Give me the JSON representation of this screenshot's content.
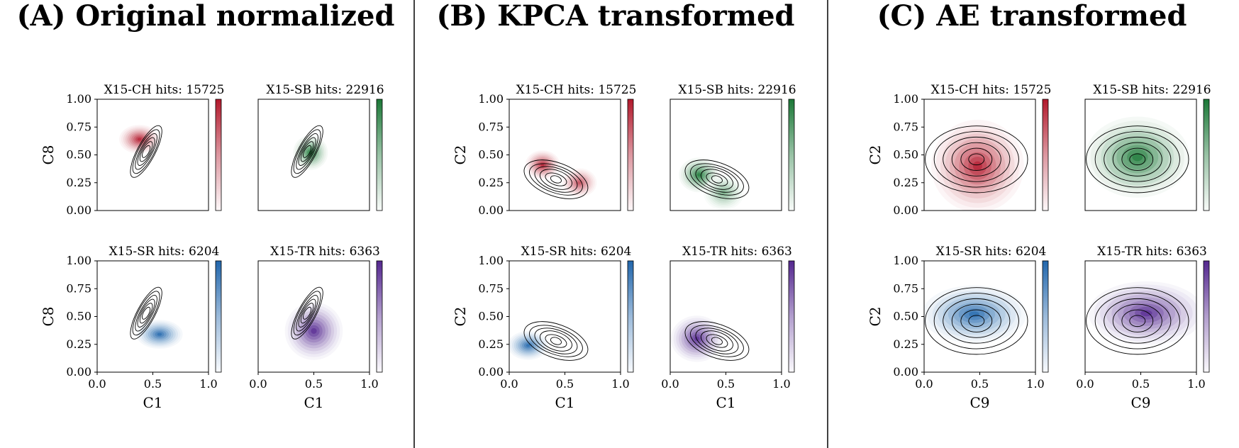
{
  "figure": {
    "panels": [
      {
        "title": "(A) Original normalized"
      },
      {
        "title": "(B) KPCA transformed"
      },
      {
        "title": "(C) AE transformed"
      }
    ]
  },
  "chart_data": [
    {
      "type": "kde_contour",
      "panel_title": "(A) Original normalized",
      "xlabel": "C1",
      "ylabel": "C8",
      "xlim": [
        0,
        1
      ],
      "ylim": [
        0,
        1
      ],
      "xticks": [
        "0.0",
        "0.5",
        "1.0"
      ],
      "yticks": [
        "0.00",
        "0.25",
        "0.50",
        "0.75",
        "1.00"
      ],
      "subplots": [
        {
          "title": "X15-CH hits: 15725",
          "colormap": "Reds",
          "color": "#b2182b",
          "density_peaks": [
            {
              "x": 0.38,
              "y": 0.64,
              "w": 1
            }
          ],
          "density_spread": [
            0.07,
            0.05
          ],
          "reference_contours": {
            "center": [
              0.44,
              0.53
            ],
            "angle_deg": -62,
            "radii": [
              [
                0.26,
                0.08
              ],
              [
                0.22,
                0.07
              ],
              [
                0.18,
                0.055
              ],
              [
                0.14,
                0.045
              ],
              [
                0.1,
                0.035
              ],
              [
                0.06,
                0.025
              ]
            ]
          }
        },
        {
          "title": "X15-SB hits: 22916",
          "colormap": "Greens",
          "color": "#1b7837",
          "density_peaks": [
            {
              "x": 0.47,
              "y": 0.52,
              "w": 1
            }
          ],
          "density_spread": [
            0.06,
            0.06
          ],
          "reference_contours": {
            "center": [
              0.44,
              0.53
            ],
            "angle_deg": -62,
            "radii": [
              [
                0.26,
                0.08
              ],
              [
                0.22,
                0.07
              ],
              [
                0.18,
                0.055
              ],
              [
                0.14,
                0.045
              ],
              [
                0.1,
                0.035
              ],
              [
                0.06,
                0.025
              ]
            ]
          }
        },
        {
          "title": "X15-SR hits: 6204",
          "colormap": "Blues",
          "color": "#2166ac",
          "density_peaks": [
            {
              "x": 0.56,
              "y": 0.34,
              "w": 1
            }
          ],
          "density_spread": [
            0.08,
            0.05
          ],
          "reference_contours": {
            "center": [
              0.44,
              0.53
            ],
            "angle_deg": -62,
            "radii": [
              [
                0.26,
                0.08
              ],
              [
                0.22,
                0.07
              ],
              [
                0.18,
                0.055
              ],
              [
                0.14,
                0.045
              ],
              [
                0.1,
                0.035
              ],
              [
                0.06,
                0.025
              ]
            ]
          }
        },
        {
          "title": "X15-TR hits: 6363",
          "colormap": "Purples",
          "color": "#54278f",
          "density_peaks": [
            {
              "x": 0.5,
              "y": 0.37,
              "w": 1
            }
          ],
          "density_spread": [
            0.1,
            0.1
          ],
          "reference_contours": {
            "center": [
              0.44,
              0.53
            ],
            "angle_deg": -62,
            "radii": [
              [
                0.26,
                0.08
              ],
              [
                0.22,
                0.07
              ],
              [
                0.18,
                0.055
              ],
              [
                0.14,
                0.045
              ],
              [
                0.1,
                0.035
              ],
              [
                0.06,
                0.025
              ]
            ]
          }
        }
      ]
    },
    {
      "type": "kde_contour",
      "panel_title": "(B) KPCA transformed",
      "xlabel": "C1",
      "ylabel": "C2",
      "xlim": [
        0,
        1
      ],
      "ylim": [
        0,
        1
      ],
      "xticks": [
        "0.0",
        "0.5",
        "1.0"
      ],
      "yticks": [
        "0.00",
        "0.25",
        "0.50",
        "0.75",
        "1.00"
      ],
      "subplots": [
        {
          "title": "X15-CH hits: 15725",
          "colormap": "Reds",
          "color": "#b2182b",
          "density_peaks": [
            {
              "x": 0.3,
              "y": 0.41,
              "w": 1
            },
            {
              "x": 0.63,
              "y": 0.25,
              "w": 0.8
            }
          ],
          "density_spread": [
            0.06,
            0.05
          ],
          "reference_contours": {
            "center": [
              0.42,
              0.28
            ],
            "angle_deg": 20,
            "radii": [
              [
                0.3,
                0.15
              ],
              [
                0.25,
                0.12
              ],
              [
                0.2,
                0.1
              ],
              [
                0.15,
                0.08
              ],
              [
                0.1,
                0.05
              ],
              [
                0.05,
                0.03
              ]
            ]
          }
        },
        {
          "title": "X15-SB hits: 22916",
          "colormap": "Greens",
          "color": "#1b7837",
          "density_peaks": [
            {
              "x": 0.26,
              "y": 0.32,
              "w": 1
            },
            {
              "x": 0.48,
              "y": 0.16,
              "w": 0.6
            }
          ],
          "density_spread": [
            0.07,
            0.06
          ],
          "reference_contours": {
            "center": [
              0.42,
              0.28
            ],
            "angle_deg": 20,
            "radii": [
              [
                0.3,
                0.15
              ],
              [
                0.25,
                0.12
              ],
              [
                0.2,
                0.1
              ],
              [
                0.15,
                0.08
              ],
              [
                0.1,
                0.05
              ],
              [
                0.05,
                0.03
              ]
            ]
          }
        },
        {
          "title": "X15-SR hits: 6204",
          "colormap": "Blues",
          "color": "#2166ac",
          "density_peaks": [
            {
              "x": 0.17,
              "y": 0.24,
              "w": 1
            }
          ],
          "density_spread": [
            0.07,
            0.05
          ],
          "reference_contours": {
            "center": [
              0.42,
              0.28
            ],
            "angle_deg": 20,
            "radii": [
              [
                0.3,
                0.15
              ],
              [
                0.25,
                0.12
              ],
              [
                0.2,
                0.1
              ],
              [
                0.15,
                0.08
              ],
              [
                0.1,
                0.05
              ],
              [
                0.05,
                0.03
              ]
            ]
          }
        },
        {
          "title": "X15-TR hits: 6363",
          "colormap": "Purples",
          "color": "#54278f",
          "density_peaks": [
            {
              "x": 0.24,
              "y": 0.3,
              "w": 1
            }
          ],
          "density_spread": [
            0.09,
            0.08
          ],
          "reference_contours": {
            "center": [
              0.42,
              0.28
            ],
            "angle_deg": 20,
            "radii": [
              [
                0.3,
                0.15
              ],
              [
                0.25,
                0.12
              ],
              [
                0.2,
                0.1
              ],
              [
                0.15,
                0.08
              ],
              [
                0.1,
                0.05
              ],
              [
                0.05,
                0.03
              ]
            ]
          }
        }
      ]
    },
    {
      "type": "kde_contour",
      "panel_title": "(C) AE transformed",
      "xlabel": "C9",
      "ylabel": "C2",
      "xlim": [
        0,
        1
      ],
      "ylim": [
        0,
        1
      ],
      "xticks": [
        "0.0",
        "0.5",
        "1.0"
      ],
      "yticks": [
        "0.00",
        "0.25",
        "0.50",
        "0.75",
        "1.00"
      ],
      "subplots": [
        {
          "title": "X15-CH hits: 15725",
          "colormap": "Reds",
          "color": "#b2182b",
          "density_peaks": [
            {
              "x": 0.48,
              "y": 0.4,
              "w": 1
            }
          ],
          "density_spread": [
            0.16,
            0.16
          ],
          "reference_contours": {
            "center": [
              0.47,
              0.46
            ],
            "angle_deg": 0,
            "radii": [
              [
                0.46,
                0.3
              ],
              [
                0.38,
                0.25
              ],
              [
                0.3,
                0.2
              ],
              [
                0.22,
                0.15
              ],
              [
                0.14,
                0.1
              ],
              [
                0.07,
                0.05
              ]
            ]
          }
        },
        {
          "title": "X15-SB hits: 22916",
          "colormap": "Greens",
          "color": "#1b7837",
          "density_peaks": [
            {
              "x": 0.47,
              "y": 0.48,
              "w": 1
            }
          ],
          "density_spread": [
            0.18,
            0.14
          ],
          "reference_contours": {
            "center": [
              0.47,
              0.46
            ],
            "angle_deg": 0,
            "radii": [
              [
                0.46,
                0.3
              ],
              [
                0.38,
                0.25
              ],
              [
                0.3,
                0.2
              ],
              [
                0.22,
                0.15
              ],
              [
                0.14,
                0.1
              ],
              [
                0.07,
                0.05
              ]
            ]
          }
        },
        {
          "title": "X15-SR hits: 6204",
          "colormap": "Blues",
          "color": "#2166ac",
          "density_peaks": [
            {
              "x": 0.45,
              "y": 0.52,
              "w": 1
            }
          ],
          "density_spread": [
            0.18,
            0.1
          ],
          "reference_contours": {
            "center": [
              0.47,
              0.46
            ],
            "angle_deg": 0,
            "radii": [
              [
                0.46,
                0.3
              ],
              [
                0.38,
                0.25
              ],
              [
                0.3,
                0.2
              ],
              [
                0.22,
                0.15
              ],
              [
                0.14,
                0.1
              ],
              [
                0.07,
                0.05
              ]
            ]
          }
        },
        {
          "title": "X15-TR hits: 6363",
          "colormap": "Purples",
          "color": "#54278f",
          "density_peaks": [
            {
              "x": 0.55,
              "y": 0.53,
              "w": 1
            }
          ],
          "density_spread": [
            0.2,
            0.11
          ],
          "reference_contours": {
            "center": [
              0.47,
              0.46
            ],
            "angle_deg": 0,
            "radii": [
              [
                0.46,
                0.3
              ],
              [
                0.38,
                0.25
              ],
              [
                0.3,
                0.2
              ],
              [
                0.22,
                0.15
              ],
              [
                0.14,
                0.1
              ],
              [
                0.07,
                0.05
              ]
            ]
          }
        }
      ]
    }
  ]
}
